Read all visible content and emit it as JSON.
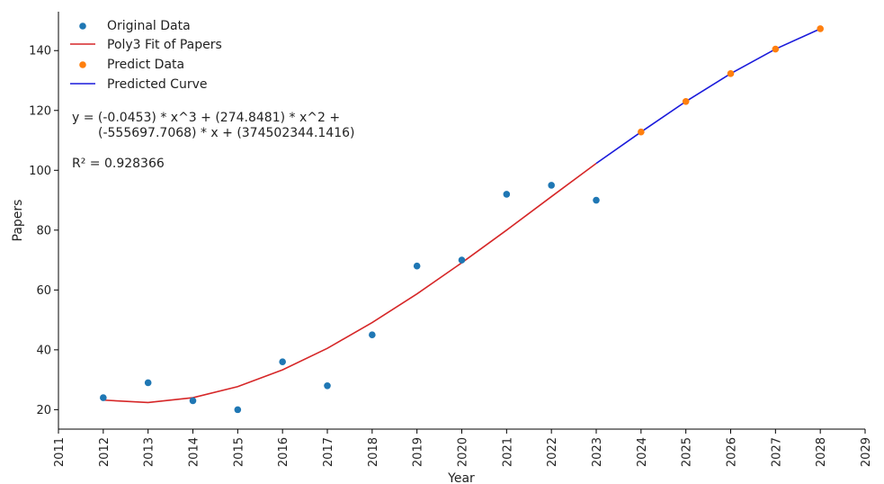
{
  "chart_data": {
    "type": "scatter",
    "xlabel": "Year",
    "ylabel": "Papers",
    "xlim": [
      2011,
      2029
    ],
    "ylim": [
      13.5,
      153
    ],
    "x_ticks": [
      2011,
      2012,
      2013,
      2014,
      2015,
      2016,
      2017,
      2018,
      2019,
      2020,
      2021,
      2022,
      2023,
      2024,
      2025,
      2026,
      2027,
      2028,
      2029
    ],
    "y_ticks": [
      20,
      40,
      60,
      80,
      100,
      120,
      140
    ],
    "grid": false,
    "legend_position": "top-left",
    "series": [
      {
        "name": "Original Data",
        "kind": "scatter",
        "color": "#1f77b4",
        "points": [
          {
            "x": 2012,
            "y": 24
          },
          {
            "x": 2013,
            "y": 29
          },
          {
            "x": 2014,
            "y": 23
          },
          {
            "x": 2015,
            "y": 20
          },
          {
            "x": 2016,
            "y": 36
          },
          {
            "x": 2017,
            "y": 28
          },
          {
            "x": 2018,
            "y": 45
          },
          {
            "x": 2019,
            "y": 68
          },
          {
            "x": 2020,
            "y": 70
          },
          {
            "x": 2021,
            "y": 92
          },
          {
            "x": 2022,
            "y": 95
          },
          {
            "x": 2023,
            "y": 90
          }
        ]
      },
      {
        "name": "Poly3 Fit of Papers",
        "kind": "line",
        "color": "#d62728",
        "points": [
          {
            "x": 2012,
            "y": 23.2
          },
          {
            "x": 2013,
            "y": 22.4
          },
          {
            "x": 2014,
            "y": 24.0
          },
          {
            "x": 2015,
            "y": 27.7
          },
          {
            "x": 2016,
            "y": 33.3
          },
          {
            "x": 2017,
            "y": 40.5
          },
          {
            "x": 2018,
            "y": 49.1
          },
          {
            "x": 2019,
            "y": 58.7
          },
          {
            "x": 2020,
            "y": 69.1
          },
          {
            "x": 2021,
            "y": 80.0
          },
          {
            "x": 2022,
            "y": 91.2
          },
          {
            "x": 2023,
            "y": 102.3
          }
        ]
      },
      {
        "name": "Predict Data",
        "kind": "scatter",
        "color": "#ff7f0e",
        "points": [
          {
            "x": 2024,
            "y": 112.8
          },
          {
            "x": 2025,
            "y": 123.0
          },
          {
            "x": 2026,
            "y": 132.3
          },
          {
            "x": 2027,
            "y": 140.5
          },
          {
            "x": 2028,
            "y": 147.3
          }
        ]
      },
      {
        "name": "Predicted Curve",
        "kind": "line",
        "color": "#1a1adb",
        "points": [
          {
            "x": 2023,
            "y": 102.3
          },
          {
            "x": 2024,
            "y": 112.8
          },
          {
            "x": 2025,
            "y": 123.0
          },
          {
            "x": 2026,
            "y": 132.3
          },
          {
            "x": 2027,
            "y": 140.5
          },
          {
            "x": 2028,
            "y": 147.3
          }
        ]
      }
    ],
    "annotations": [
      "y = (-0.0453) * x^3 + (274.8481) * x^2 +",
      "(-555697.7068) * x + (374502344.1416)",
      "R² = 0.928366"
    ]
  }
}
